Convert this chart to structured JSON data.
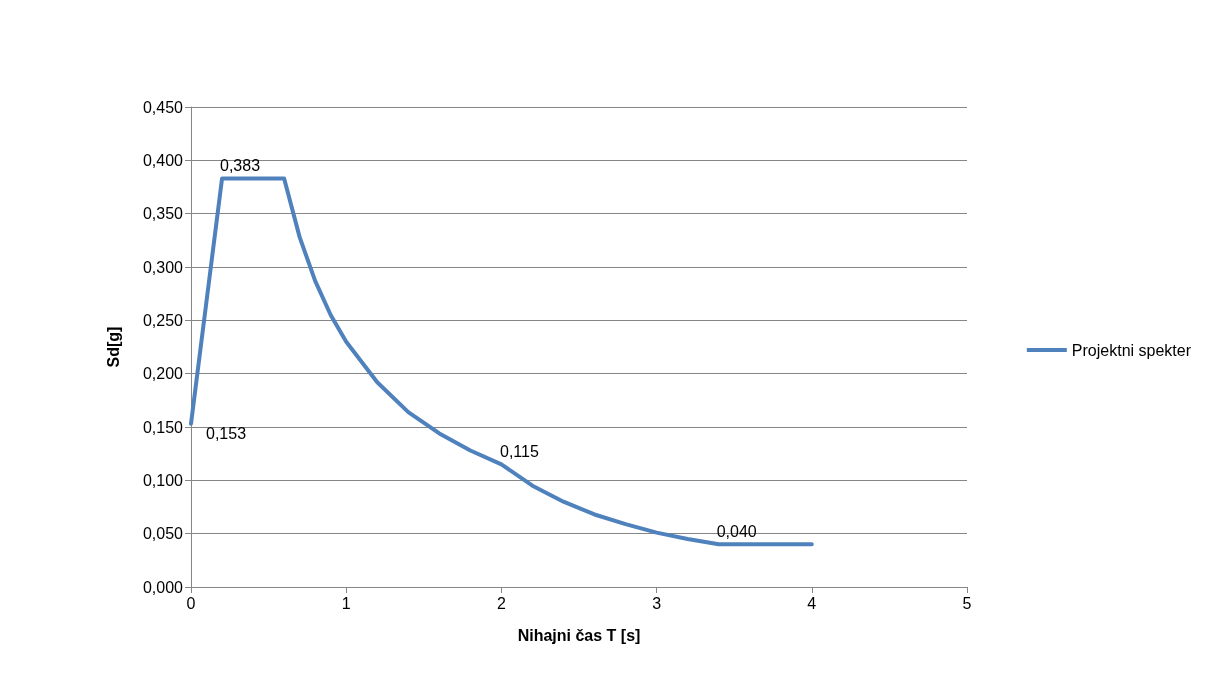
{
  "chart_data": {
    "type": "line",
    "xlabel": "Nihajni čas T [s]",
    "ylabel": "Sd[g]",
    "x": [
      0,
      0.2,
      0.6,
      0.7,
      0.8,
      0.9,
      1.0,
      1.2,
      1.4,
      1.6,
      1.8,
      2.0,
      2.2,
      2.4,
      2.6,
      2.8,
      3.0,
      3.2,
      3.4,
      3.6,
      4.0
    ],
    "series": [
      {
        "name": "Projektni spekter",
        "color": "#4f81bd",
        "values": [
          0.153,
          0.383,
          0.383,
          0.328,
          0.287,
          0.255,
          0.23,
          0.192,
          0.164,
          0.144,
          0.128,
          0.115,
          0.095,
          0.08,
          0.068,
          0.059,
          0.051,
          0.045,
          0.04,
          0.04,
          0.04
        ],
        "value_labels": [
          "0,153",
          "0,383",
          null,
          null,
          null,
          null,
          null,
          null,
          null,
          null,
          null,
          "0,115",
          null,
          null,
          null,
          null,
          null,
          null,
          "0,040",
          null,
          null
        ]
      }
    ],
    "xlim": [
      0,
      5
    ],
    "xticks": [
      0,
      1,
      2,
      3,
      4,
      5
    ],
    "ylim": [
      0,
      0.45
    ],
    "yticks": [
      {
        "value": 0,
        "label": "0,000"
      },
      {
        "value": 0.05,
        "label": "0,050"
      },
      {
        "value": 0.1,
        "label": "0,100"
      },
      {
        "value": 0.15,
        "label": "0,150"
      },
      {
        "value": 0.2,
        "label": "0,200"
      },
      {
        "value": 0.25,
        "label": "0,250"
      },
      {
        "value": 0.3,
        "label": "0,300"
      },
      {
        "value": 0.35,
        "label": "0,350"
      },
      {
        "value": 0.4,
        "label": "0,400"
      },
      {
        "value": 0.45,
        "label": "0,450"
      }
    ],
    "grid": "y",
    "legend": "right",
    "marker": "none",
    "line_style": "solid"
  }
}
